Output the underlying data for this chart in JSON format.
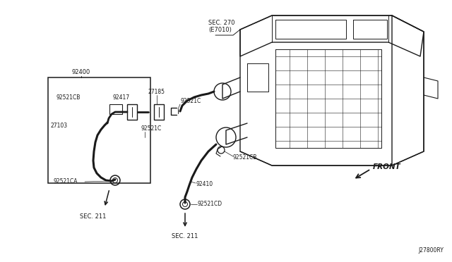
{
  "bg_color": "#ffffff",
  "line_color": "#1a1a1a",
  "diagram_id": "J27800RY",
  "labels": {
    "sec270": "SEC. 270",
    "e7010": "(E7010)",
    "92400": "92400",
    "92521CB": "92521CB",
    "92417": "92417",
    "27185": "27185",
    "92521C_top": "92521C",
    "27103": "27103",
    "92521C_bot": "92521C",
    "92521CA": "92521CA",
    "sec211_left": "SEC. 211",
    "92521CB_r": "92521CB",
    "92410": "92410",
    "92521CD": "92521CD",
    "sec211_bot": "SEC. 211",
    "front": "FRONT"
  }
}
